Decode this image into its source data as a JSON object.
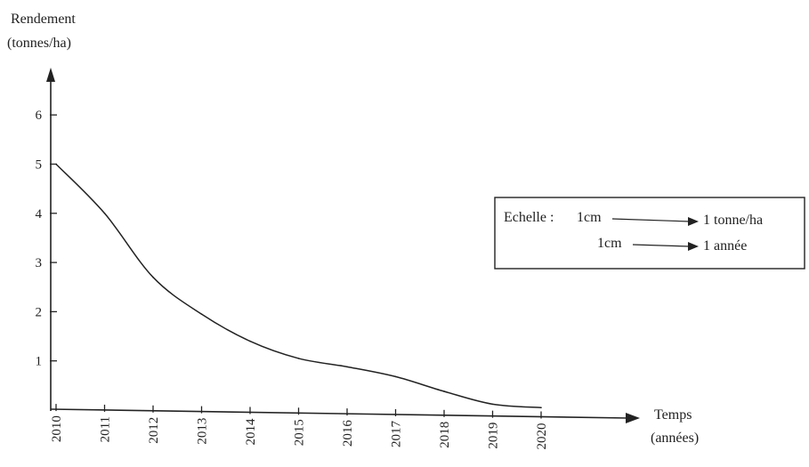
{
  "chart_data": {
    "type": "line",
    "ylabel_line1": "Rendement",
    "ylabel_line2": "(tonnes/ha)",
    "xlabel_line1": "Temps",
    "xlabel_line2": "(années)",
    "x": [
      "2010",
      "2011",
      "2012",
      "2013",
      "2014",
      "2015",
      "2016",
      "2017",
      "2018",
      "2019",
      "2020"
    ],
    "y_ticks": [
      "1",
      "2",
      "3",
      "4",
      "5",
      "6"
    ],
    "series": [
      {
        "values": [
          5.0,
          4.0,
          2.7,
          1.95,
          1.4,
          1.05,
          0.88,
          0.68,
          0.38,
          0.12,
          0.05
        ]
      }
    ],
    "ylim": [
      0,
      7
    ],
    "grid": false,
    "legend": "none",
    "scale_box": {
      "label": "Echelle :",
      "row1_unit": "1cm",
      "row1_value": "1 tonne/ha",
      "row2_unit": "1cm",
      "row2_value": "1 année"
    },
    "colors": {
      "line": "#222222",
      "axis": "#222222"
    }
  }
}
